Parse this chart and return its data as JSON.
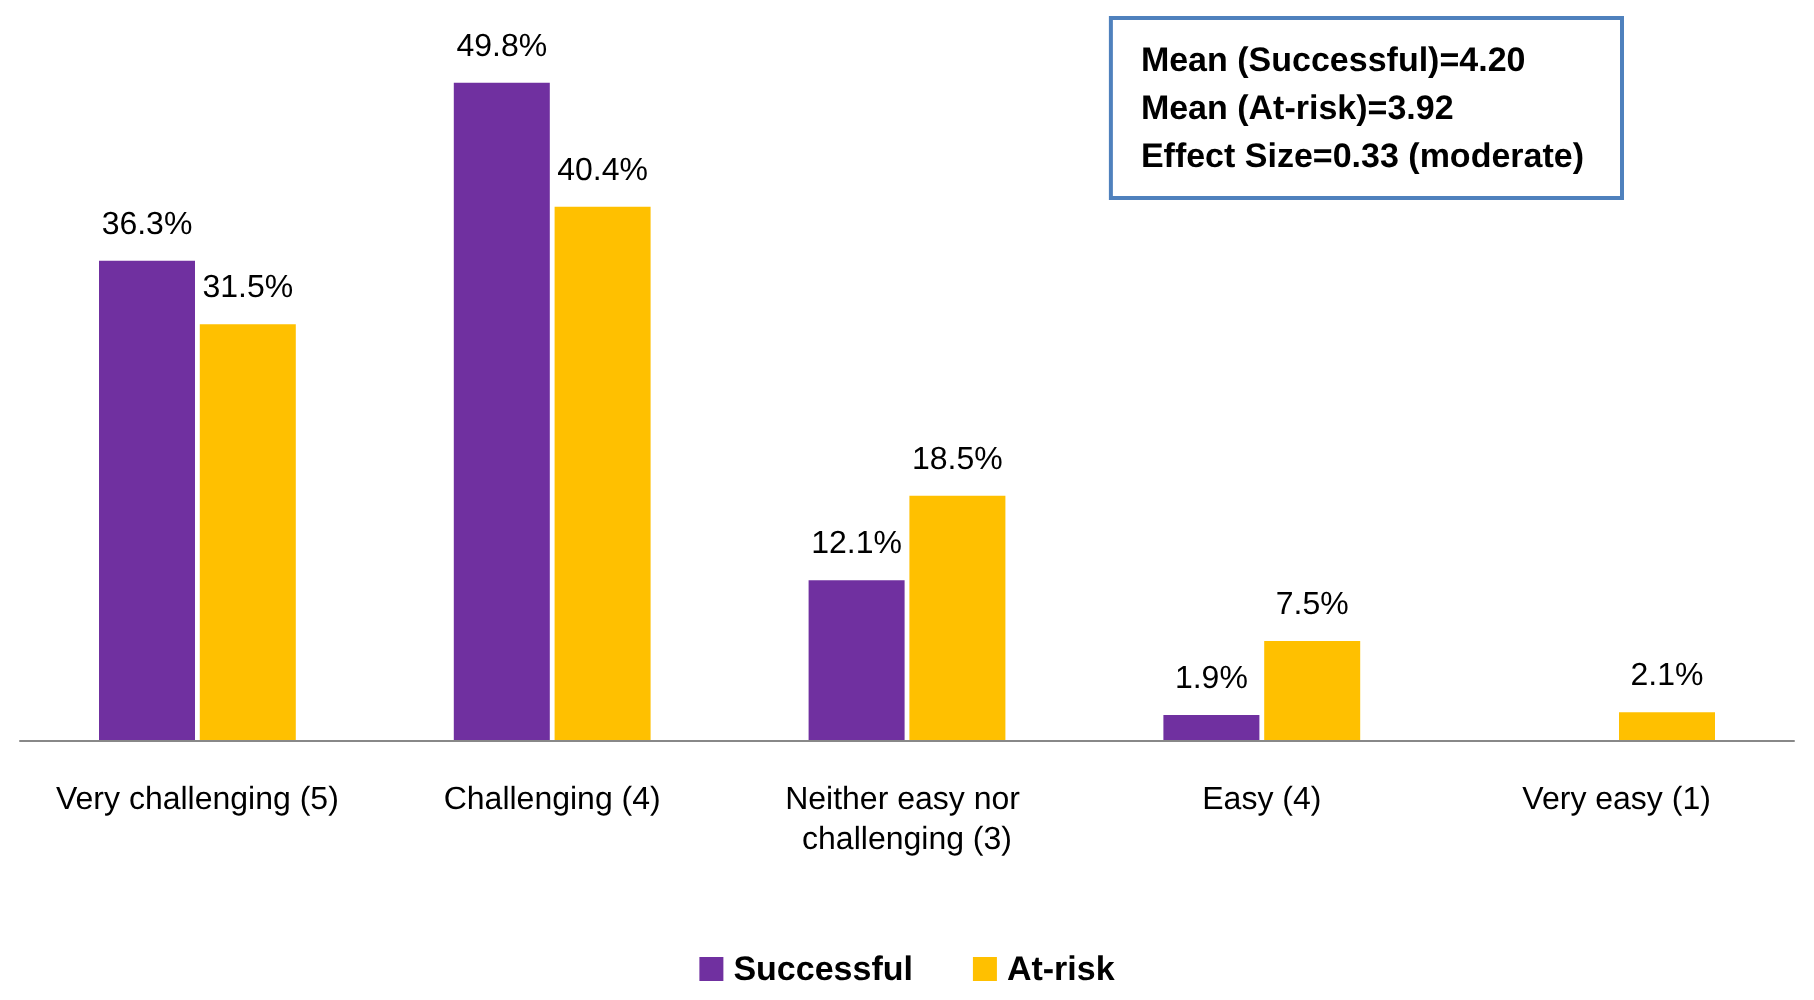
{
  "chart_data": {
    "type": "bar",
    "categories": [
      "Very challenging (5)",
      "Challenging (4)",
      "Neither easy nor challenging (3)",
      "Easy (4)",
      "Very easy (1)"
    ],
    "series": [
      {
        "name": "Successful",
        "color": "#7030a0",
        "values": [
          36.3,
          49.8,
          12.1,
          1.9,
          null
        ],
        "value_labels": [
          "36.3%",
          "49.8%",
          "12.1%",
          "1.9%",
          null
        ]
      },
      {
        "name": "At-risk",
        "color": "#ffc000",
        "values": [
          31.5,
          40.4,
          18.5,
          7.5,
          2.1
        ],
        "value_labels": [
          "31.5%",
          "40.4%",
          "18.5%",
          "7.5%",
          "2.1%"
        ]
      }
    ],
    "annotations": [
      "Mean (Successful)=4.20",
      "Mean (At-risk)=3.92",
      "Effect Size=0.33 (moderate)"
    ],
    "legend": "bottom"
  }
}
